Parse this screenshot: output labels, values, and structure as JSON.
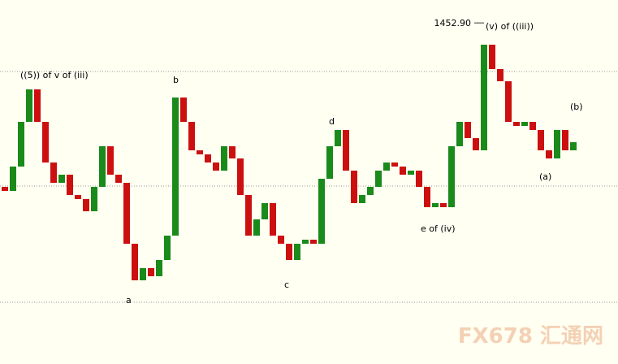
{
  "chart_data": {
    "type": "candle",
    "open": [
      1352,
      1349.5,
      1364.5,
      1392,
      1412,
      1392,
      1367,
      1354.5,
      1359.5,
      1347,
      1344.5,
      1337,
      1352,
      1377,
      1359.5,
      1354.5,
      1317,
      1294.5,
      1302,
      1297,
      1307,
      1322,
      1407,
      1392,
      1374.5,
      1372,
      1367,
      1362,
      1377,
      1369.5,
      1347,
      1322,
      1332,
      1342,
      1322,
      1317,
      1307,
      1317,
      1319.5,
      1317,
      1357,
      1377,
      1387,
      1362,
      1342,
      1347,
      1352,
      1362,
      1367,
      1364.5,
      1359.5,
      1362,
      1352,
      1339.5,
      1342,
      1339.5,
      1377,
      1392,
      1382,
      1374.5,
      1439.5,
      1424.5,
      1417,
      1392,
      1389.5,
      1392,
      1387,
      1374.5,
      1369.5,
      1387,
      1374.5
    ],
    "close": [
      1349.5,
      1364.5,
      1392,
      1412,
      1392,
      1367,
      1354.5,
      1359.5,
      1347,
      1344.5,
      1337,
      1352,
      1377,
      1359.5,
      1354.5,
      1317,
      1294.5,
      1302,
      1297,
      1307,
      1322,
      1407,
      1392,
      1374.5,
      1372,
      1367,
      1362,
      1377,
      1369.5,
      1347,
      1322,
      1332,
      1342,
      1322,
      1317,
      1307,
      1317,
      1319.5,
      1317,
      1357,
      1377,
      1387,
      1362,
      1342,
      1347,
      1352,
      1362,
      1367,
      1364.5,
      1359.5,
      1362,
      1352,
      1339.5,
      1342,
      1339.5,
      1377,
      1392,
      1382,
      1374.5,
      1439.5,
      1424.5,
      1417,
      1392,
      1389.5,
      1392,
      1387,
      1374.5,
      1369.5,
      1387,
      1374.5,
      1379.5
    ],
    "up_color": "#1a8a1a",
    "down_color": "#cc1010",
    "ylim": [
      1270,
      1466
    ],
    "grid_levels": [
      1423,
      1352.5,
      1281
    ],
    "peak": {
      "value": 1452.9,
      "label": "1452.90"
    },
    "annotations": [
      "((5)) of v of (iii)",
      "b",
      "a",
      "c",
      "d",
      "e of (iv)",
      "(v) of ((iii))",
      "(a)",
      "(b)"
    ],
    "watermark": "FX678 汇通网"
  }
}
